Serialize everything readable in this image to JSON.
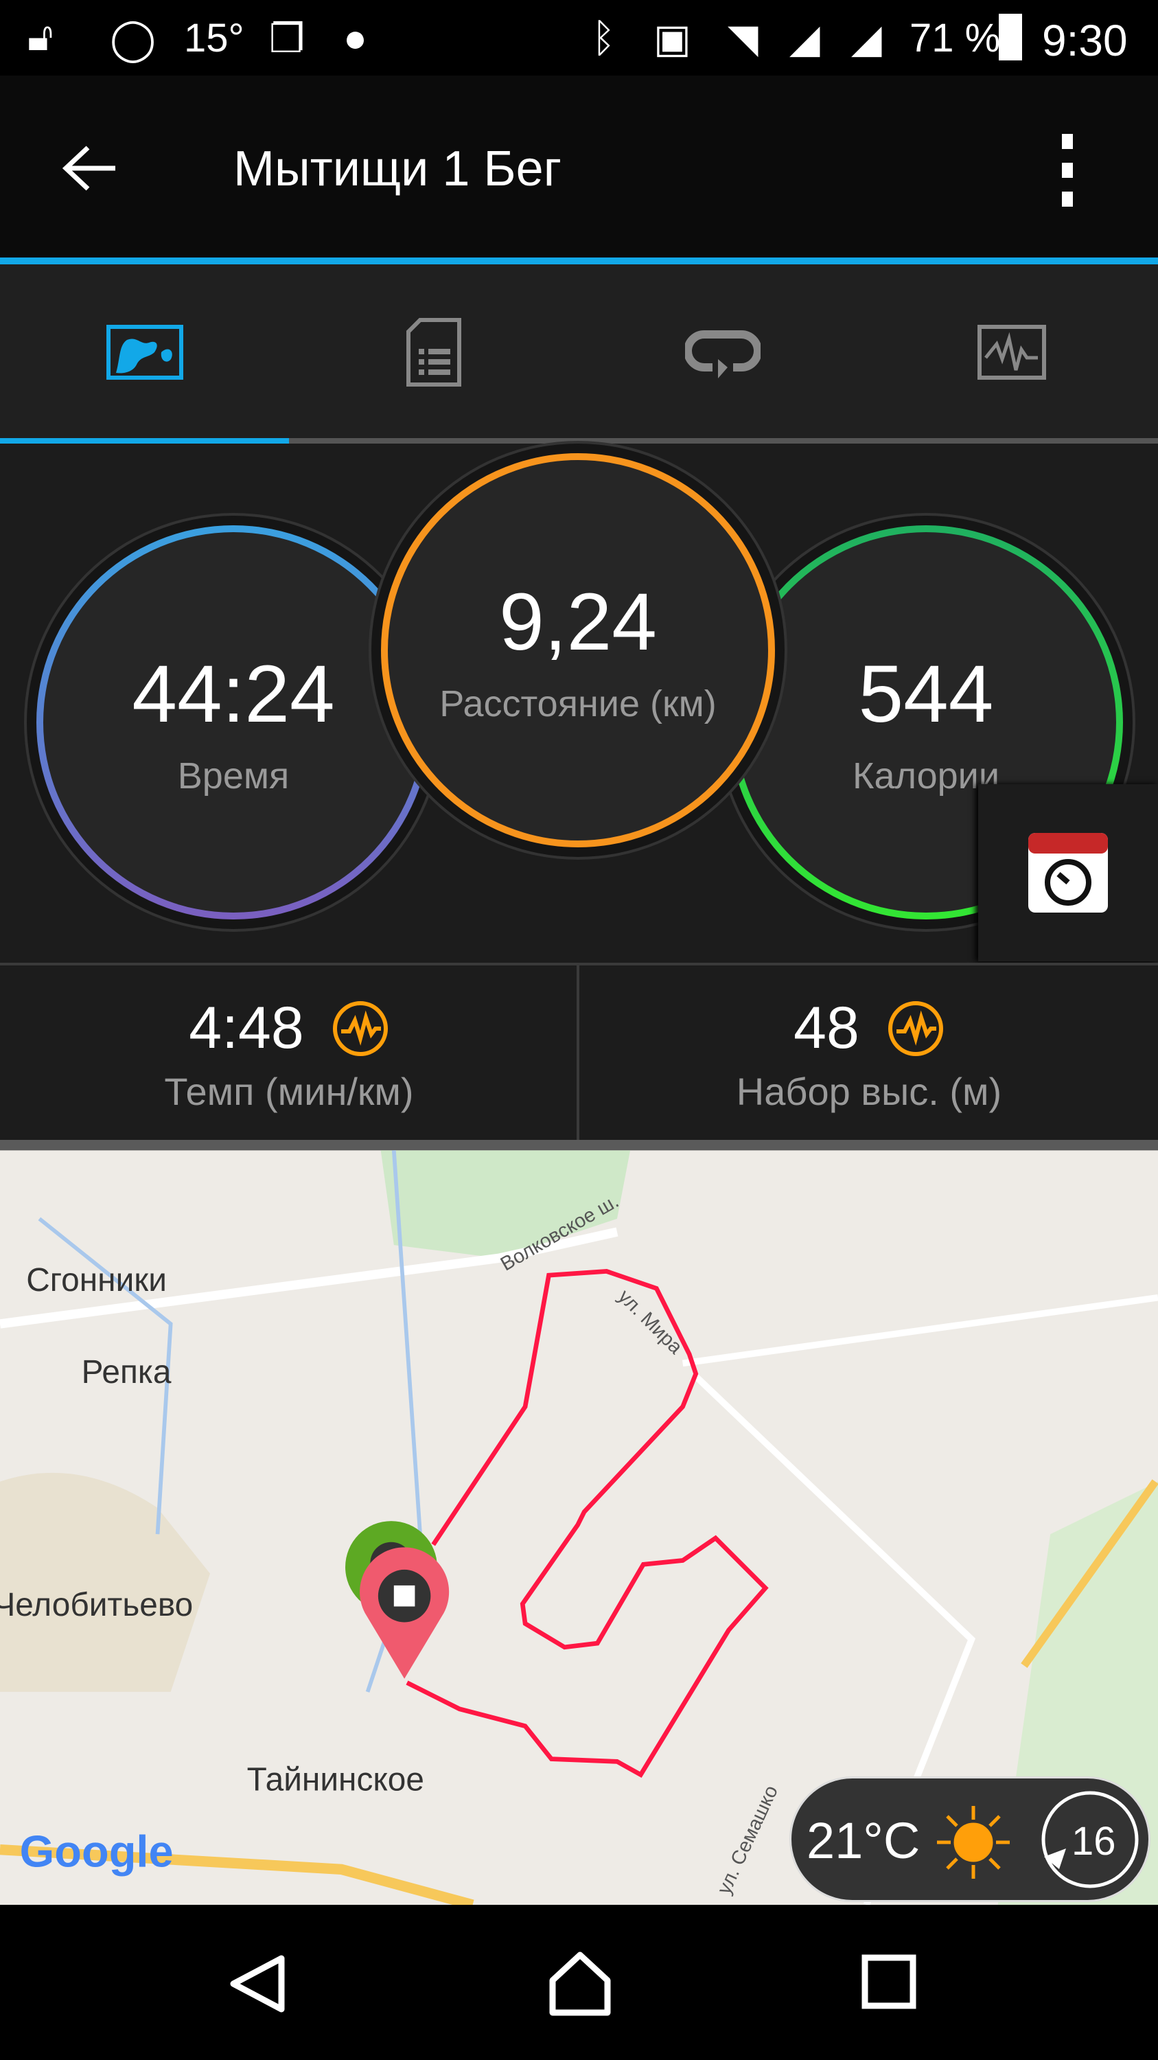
{
  "status_bar": {
    "temperature": "15°",
    "battery": "71 %",
    "time": "9:30",
    "icons": [
      "unlock-icon",
      "whatsapp-icon",
      "weather-temp",
      "copy-icon",
      "phone-icon",
      "bluetooth-icon",
      "nfc-icon",
      "wifi-icon",
      "signal-icon",
      "signal-icon",
      "battery-icon"
    ]
  },
  "app_bar": {
    "title": "Мытищи 1 Бег",
    "back_icon": "arrow-left-icon",
    "menu_icon": "more-vert-icon"
  },
  "tabs": [
    {
      "icon": "map-overview-icon",
      "active": true
    },
    {
      "icon": "details-list-icon",
      "active": false
    },
    {
      "icon": "laps-icon",
      "active": false
    },
    {
      "icon": "chart-icon",
      "active": false
    }
  ],
  "stats": {
    "time": {
      "value": "44:24",
      "label": "Время"
    },
    "distance": {
      "value": "9,24",
      "label": "Расстояние (км)"
    },
    "calories": {
      "value": "544",
      "label": "Калории"
    },
    "pace": {
      "value": "4:48",
      "label": "Темп (мин/км)"
    },
    "elevation": {
      "value": "48",
      "label": "Набор выс. (м)"
    }
  },
  "colors": {
    "accent": "#12a8e8",
    "distance": "#f7941d",
    "route": "#ff1744",
    "sun": "#ff9f0a"
  },
  "map": {
    "labels": [
      "Волковское ш.",
      "Сгонники",
      "Репка",
      "ул. Мира",
      "Челобитьево",
      "Тайнинское",
      "ул. Семашко"
    ],
    "logo": "Google"
  },
  "weather": {
    "temperature": "21°C",
    "wind": "16"
  },
  "nav": {
    "back": "back-icon",
    "home": "home-icon",
    "recents": "recents-icon"
  }
}
